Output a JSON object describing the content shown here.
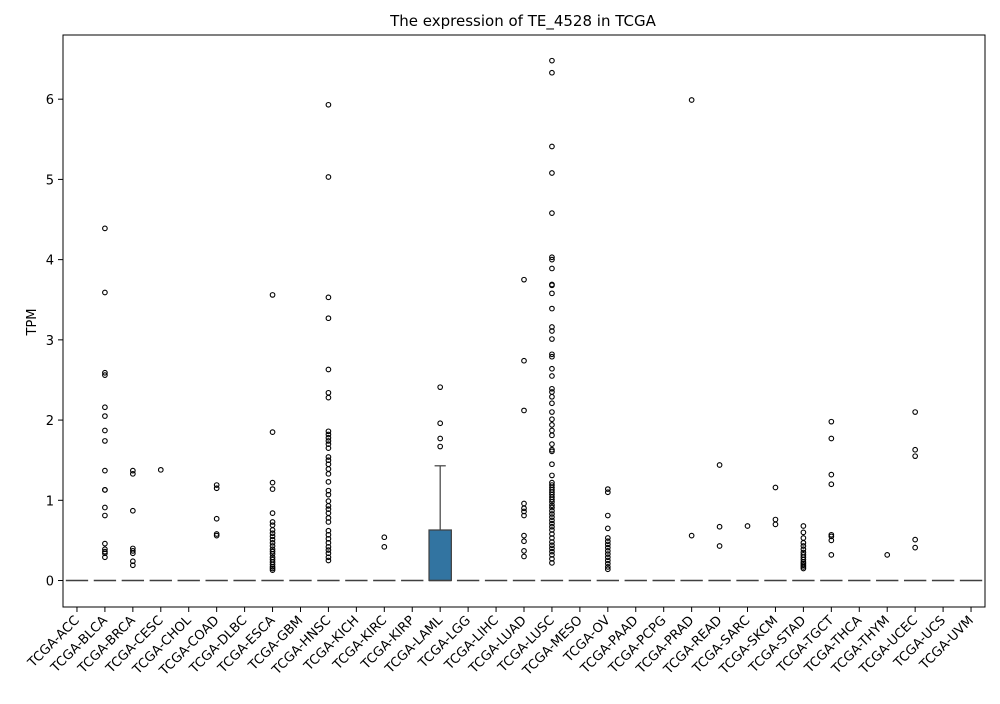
{
  "chart_data": {
    "type": "box",
    "title": "The expression of TE_4528 in TCGA",
    "xlabel": "",
    "ylabel": "TPM",
    "ylim": [
      -0.33,
      6.8
    ],
    "yticks": [
      0,
      1,
      2,
      3,
      4,
      5,
      6
    ],
    "grid": false,
    "box_color": "#3274a1",
    "categories": [
      "TCGA-ACC",
      "TCGA-BLCA",
      "TCGA-BRCA",
      "TCGA-CESC",
      "TCGA-CHOL",
      "TCGA-COAD",
      "TCGA-DLBC",
      "TCGA-ESCA",
      "TCGA-GBM",
      "TCGA-HNSC",
      "TCGA-KICH",
      "TCGA-KIRC",
      "TCGA-KIRP",
      "TCGA-LAML",
      "TCGA-LGG",
      "TCGA-LIHC",
      "TCGA-LUAD",
      "TCGA-LUSC",
      "TCGA-MESO",
      "TCGA-OV",
      "TCGA-PAAD",
      "TCGA-PCPG",
      "TCGA-PRAD",
      "TCGA-READ",
      "TCGA-SARC",
      "TCGA-SKCM",
      "TCGA-STAD",
      "TCGA-TGCT",
      "TCGA-THCA",
      "TCGA-THYM",
      "TCGA-UCEC",
      "TCGA-UCS",
      "TCGA-UVM"
    ],
    "boxes": [
      {
        "q1": 0,
        "median": 0,
        "q3": 0,
        "whisker_low": 0,
        "whisker_high": 0,
        "outliers": []
      },
      {
        "q1": 0,
        "median": 0,
        "q3": 0,
        "whisker_low": 0,
        "whisker_high": 0,
        "outliers": [
          4.39,
          3.59,
          2.59,
          2.56,
          2.16,
          2.05,
          1.87,
          1.74,
          1.37,
          1.13,
          1.13,
          0.91,
          0.81,
          0.46,
          0.39,
          0.36,
          0.34,
          0.29
        ]
      },
      {
        "q1": 0,
        "median": 0,
        "q3": 0,
        "whisker_low": 0,
        "whisker_high": 0,
        "outliers": [
          1.37,
          1.33,
          0.87,
          0.4,
          0.37,
          0.34,
          0.24,
          0.19
        ]
      },
      {
        "q1": 0,
        "median": 0,
        "q3": 0,
        "whisker_low": 0,
        "whisker_high": 0,
        "outliers": [
          1.38
        ]
      },
      {
        "q1": 0,
        "median": 0,
        "q3": 0,
        "whisker_low": 0,
        "whisker_high": 0,
        "outliers": []
      },
      {
        "q1": 0,
        "median": 0,
        "q3": 0,
        "whisker_low": 0,
        "whisker_high": 0,
        "outliers": [
          1.19,
          1.15,
          0.77,
          0.58,
          0.56
        ]
      },
      {
        "q1": 0,
        "median": 0,
        "q3": 0,
        "whisker_low": 0,
        "whisker_high": 0,
        "outliers": []
      },
      {
        "q1": 0,
        "median": 0,
        "q3": 0,
        "whisker_low": 0,
        "whisker_high": 0,
        "outliers": [
          3.56,
          1.85,
          1.22,
          1.14,
          0.84,
          0.73,
          0.69,
          0.63,
          0.59,
          0.55,
          0.51,
          0.47,
          0.43,
          0.39,
          0.36,
          0.33,
          0.29,
          0.26,
          0.23,
          0.2,
          0.17,
          0.15,
          0.13
        ]
      },
      {
        "q1": 0,
        "median": 0,
        "q3": 0,
        "whisker_low": 0,
        "whisker_high": 0,
        "outliers": []
      },
      {
        "q1": 0,
        "median": 0,
        "q3": 0,
        "whisker_low": 0,
        "whisker_high": 0,
        "outliers": [
          5.93,
          5.03,
          3.53,
          3.27,
          2.63,
          2.34,
          2.28,
          1.86,
          1.82,
          1.78,
          1.74,
          1.7,
          1.65,
          1.54,
          1.5,
          1.45,
          1.39,
          1.33,
          1.23,
          1.12,
          1.07,
          0.99,
          0.93,
          0.89,
          0.84,
          0.78,
          0.73,
          0.62,
          0.57,
          0.52,
          0.47,
          0.42,
          0.38,
          0.34,
          0.29,
          0.25
        ]
      },
      {
        "q1": 0,
        "median": 0,
        "q3": 0,
        "whisker_low": 0,
        "whisker_high": 0,
        "outliers": []
      },
      {
        "q1": 0,
        "median": 0,
        "q3": 0,
        "whisker_low": 0,
        "whisker_high": 0,
        "outliers": [
          0.54,
          0.42
        ]
      },
      {
        "q1": 0,
        "median": 0,
        "q3": 0,
        "whisker_low": 0,
        "whisker_high": 0,
        "outliers": []
      },
      {
        "q1": 0,
        "median": 0,
        "q3": 0.63,
        "whisker_low": 0,
        "whisker_high": 1.43,
        "outliers": [
          2.41,
          1.96,
          1.77,
          1.67
        ]
      },
      {
        "q1": 0,
        "median": 0,
        "q3": 0,
        "whisker_low": 0,
        "whisker_high": 0,
        "outliers": []
      },
      {
        "q1": 0,
        "median": 0,
        "q3": 0,
        "whisker_low": 0,
        "whisker_high": 0,
        "outliers": []
      },
      {
        "q1": 0,
        "median": 0,
        "q3": 0,
        "whisker_low": 0,
        "whisker_high": 0,
        "outliers": [
          3.75,
          2.74,
          2.12,
          0.96,
          0.9,
          0.86,
          0.81,
          0.56,
          0.49,
          0.37,
          0.3
        ]
      },
      {
        "q1": 0,
        "median": 0,
        "q3": 0,
        "whisker_low": 0,
        "whisker_high": 0,
        "outliers": [
          6.48,
          6.33,
          5.41,
          5.08,
          4.58,
          4.03,
          4.0,
          3.89,
          3.69,
          3.68,
          3.58,
          3.39,
          3.16,
          3.11,
          3.01,
          2.82,
          2.79,
          2.64,
          2.55,
          2.39,
          2.35,
          2.29,
          2.21,
          2.1,
          2.01,
          1.94,
          1.87,
          1.81,
          1.7,
          1.63,
          1.61,
          1.45,
          1.31,
          1.22,
          1.19,
          1.16,
          1.13,
          1.1,
          1.07,
          1.04,
          1.01,
          0.98,
          0.94,
          0.91,
          0.87,
          0.83,
          0.79,
          0.75,
          0.71,
          0.67,
          0.63,
          0.58,
          0.53,
          0.48,
          0.44,
          0.4,
          0.36,
          0.32,
          0.27,
          0.22
        ]
      },
      {
        "q1": 0,
        "median": 0,
        "q3": 0,
        "whisker_low": 0,
        "whisker_high": 0,
        "outliers": []
      },
      {
        "q1": 0,
        "median": 0,
        "q3": 0,
        "whisker_low": 0,
        "whisker_high": 0,
        "outliers": [
          1.14,
          1.1,
          0.81,
          0.65,
          0.53,
          0.49,
          0.45,
          0.41,
          0.37,
          0.33,
          0.29,
          0.25,
          0.21,
          0.17,
          0.14
        ]
      },
      {
        "q1": 0,
        "median": 0,
        "q3": 0,
        "whisker_low": 0,
        "whisker_high": 0,
        "outliers": []
      },
      {
        "q1": 0,
        "median": 0,
        "q3": 0,
        "whisker_low": 0,
        "whisker_high": 0,
        "outliers": []
      },
      {
        "q1": 0,
        "median": 0,
        "q3": 0,
        "whisker_low": 0,
        "whisker_high": 0,
        "outliers": [
          5.99,
          0.56
        ]
      },
      {
        "q1": 0,
        "median": 0,
        "q3": 0,
        "whisker_low": 0,
        "whisker_high": 0,
        "outliers": [
          1.44,
          0.67,
          0.43
        ]
      },
      {
        "q1": 0,
        "median": 0,
        "q3": 0,
        "whisker_low": 0,
        "whisker_high": 0,
        "outliers": [
          0.68
        ]
      },
      {
        "q1": 0,
        "median": 0,
        "q3": 0,
        "whisker_low": 0,
        "whisker_high": 0,
        "outliers": [
          1.16,
          0.76,
          0.7
        ]
      },
      {
        "q1": 0,
        "median": 0,
        "q3": 0,
        "whisker_low": 0,
        "whisker_high": 0,
        "outliers": [
          0.68,
          0.6,
          0.53,
          0.47,
          0.43,
          0.39,
          0.35,
          0.32,
          0.29,
          0.26,
          0.23,
          0.21,
          0.19,
          0.17,
          0.15
        ]
      },
      {
        "q1": 0,
        "median": 0,
        "q3": 0,
        "whisker_low": 0,
        "whisker_high": 0,
        "outliers": [
          1.98,
          1.77,
          1.32,
          1.2,
          0.57,
          0.55,
          0.5,
          0.32
        ]
      },
      {
        "q1": 0,
        "median": 0,
        "q3": 0,
        "whisker_low": 0,
        "whisker_high": 0,
        "outliers": []
      },
      {
        "q1": 0,
        "median": 0,
        "q3": 0,
        "whisker_low": 0,
        "whisker_high": 0,
        "outliers": [
          0.32
        ]
      },
      {
        "q1": 0,
        "median": 0,
        "q3": 0,
        "whisker_low": 0,
        "whisker_high": 0,
        "outliers": [
          2.1,
          1.63,
          1.55,
          0.51,
          0.41
        ]
      },
      {
        "q1": 0,
        "median": 0,
        "q3": 0,
        "whisker_low": 0,
        "whisker_high": 0,
        "outliers": []
      },
      {
        "q1": 0,
        "median": 0,
        "q3": 0,
        "whisker_low": 0,
        "whisker_high": 0,
        "outliers": []
      }
    ]
  }
}
